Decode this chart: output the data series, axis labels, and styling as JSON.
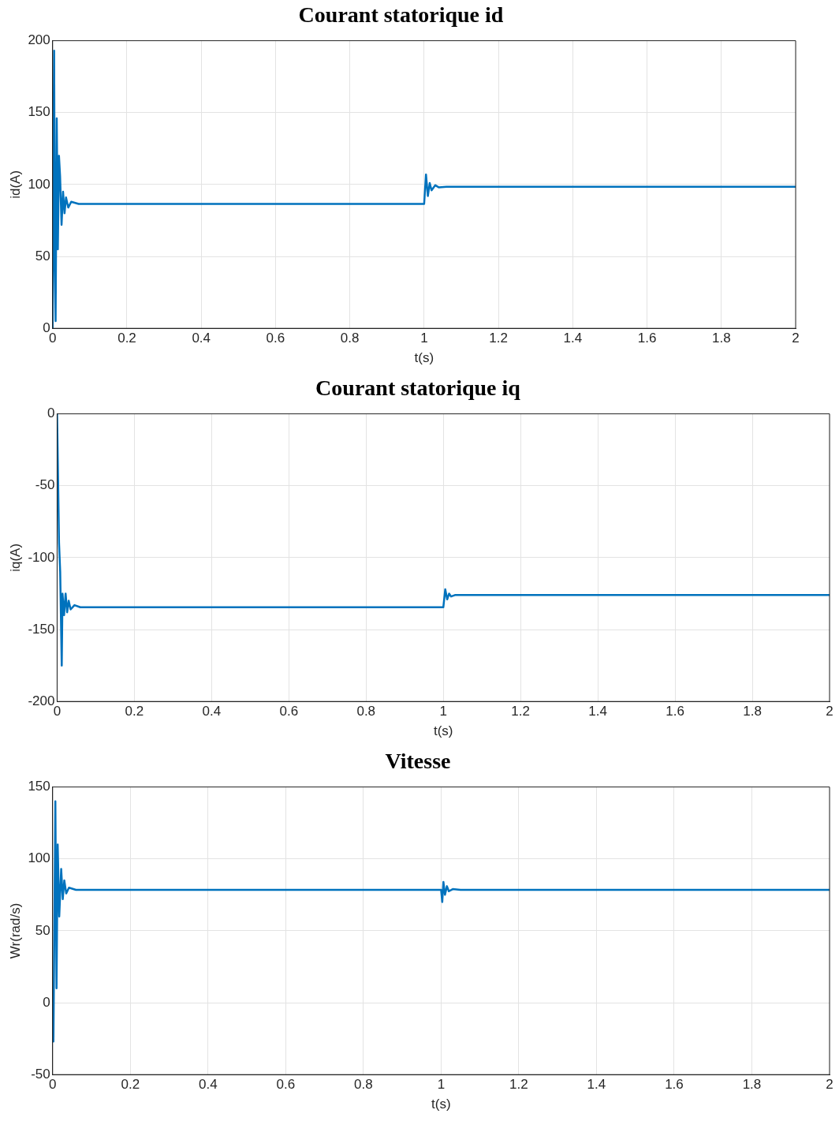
{
  "chart_data": [
    {
      "type": "line",
      "title": "Courant statorique id",
      "xlabel": "t(s)",
      "ylabel": "id(A)",
      "color": "#0072bd",
      "grid": true,
      "x": [
        0,
        0.002,
        0.004,
        0.006,
        0.008,
        0.011,
        0.014,
        0.017,
        0.02,
        0.024,
        0.028,
        0.032,
        0.036,
        0.042,
        0.05,
        0.07,
        1.0,
        1.005,
        1.01,
        1.015,
        1.02,
        1.03,
        1.04,
        1.06,
        2
      ],
      "values": [
        0,
        120,
        193,
        40,
        5,
        146,
        55,
        120,
        106,
        72,
        95,
        80,
        91,
        84,
        88,
        86.5,
        86.5,
        107,
        92,
        101,
        96,
        99.5,
        98,
        98.5,
        98.5
      ],
      "xlim": [
        0,
        2
      ],
      "ylim": [
        0,
        200
      ],
      "xticks": [
        0,
        0.2,
        0.4,
        0.6,
        0.8,
        1,
        1.2,
        1.4,
        1.6,
        1.8,
        2
      ],
      "yticks": [
        0,
        50,
        100,
        150,
        200
      ]
    },
    {
      "type": "line",
      "title": "Courant statorique iq",
      "xlabel": "t(s)",
      "ylabel": "iq(A)",
      "color": "#0072bd",
      "grid": true,
      "x": [
        0,
        0.005,
        0.008,
        0.012,
        0.014,
        0.018,
        0.022,
        0.026,
        0.03,
        0.035,
        0.045,
        0.06,
        1.0,
        1.005,
        1.01,
        1.015,
        1.02,
        1.03,
        2
      ],
      "values": [
        0,
        -90,
        -110,
        -175,
        -125,
        -140,
        -125,
        -138,
        -130,
        -136,
        -133,
        -134.5,
        -134.5,
        -122,
        -129,
        -125,
        -127,
        -126,
        -126
      ],
      "xlim": [
        0,
        2
      ],
      "ylim": [
        -200,
        0
      ],
      "xticks": [
        0,
        0.2,
        0.4,
        0.6,
        0.8,
        1,
        1.2,
        1.4,
        1.6,
        1.8,
        2
      ],
      "yticks": [
        -200,
        -150,
        -100,
        -50,
        0
      ]
    },
    {
      "type": "line",
      "title": "Vitesse",
      "xlabel": "t(s)",
      "ylabel": "Wr(rad/s)",
      "color": "#0072bd",
      "grid": true,
      "x": [
        0,
        0.002,
        0.007,
        0.01,
        0.013,
        0.017,
        0.022,
        0.026,
        0.03,
        0.035,
        0.042,
        0.06,
        1.0,
        1.003,
        1.006,
        1.01,
        1.015,
        1.02,
        1.03,
        1.05,
        2
      ],
      "values": [
        0,
        -27,
        140,
        10,
        110,
        60,
        93,
        72,
        85,
        76,
        80,
        78.5,
        78.5,
        70,
        84,
        75,
        81,
        77.5,
        79,
        78.5,
        78.5
      ],
      "xlim": [
        0,
        2
      ],
      "ylim": [
        -50,
        150
      ],
      "xticks": [
        0,
        0.2,
        0.4,
        0.6,
        0.8,
        1,
        1.2,
        1.4,
        1.6,
        1.8,
        2
      ],
      "yticks": [
        -50,
        0,
        50,
        100,
        150
      ]
    }
  ]
}
